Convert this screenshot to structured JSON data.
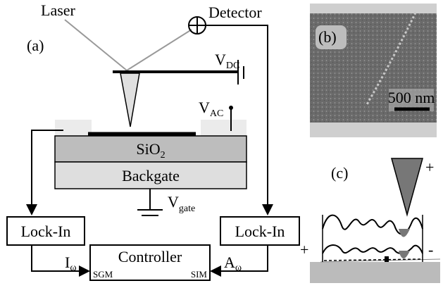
{
  "panel_a": {
    "label": "(a)",
    "laser": "Laser",
    "detector": "Detector",
    "v_dc": {
      "main": "V",
      "sub": "DC"
    },
    "v_ac": {
      "main": "V",
      "sub": "AC"
    },
    "oxide": {
      "main": "SiO",
      "sub": "2"
    },
    "backgate": "Backgate",
    "v_gate": {
      "main": "V",
      "sub": "gate"
    },
    "lockin_left": "Lock-In",
    "lockin_right": "Lock-In",
    "controller": "Controller",
    "i_omega": {
      "main": "I",
      "sub": "ω"
    },
    "sgm": "SGM",
    "sim": "SIM",
    "a_omega": {
      "main": "A",
      "sub": "ω"
    }
  },
  "panel_b": {
    "label": "(b)",
    "scale_bar": "500 nm"
  },
  "panel_c": {
    "label": "(c)",
    "tip_charge": "+",
    "left_charge": "+",
    "right_charge": "-"
  }
}
